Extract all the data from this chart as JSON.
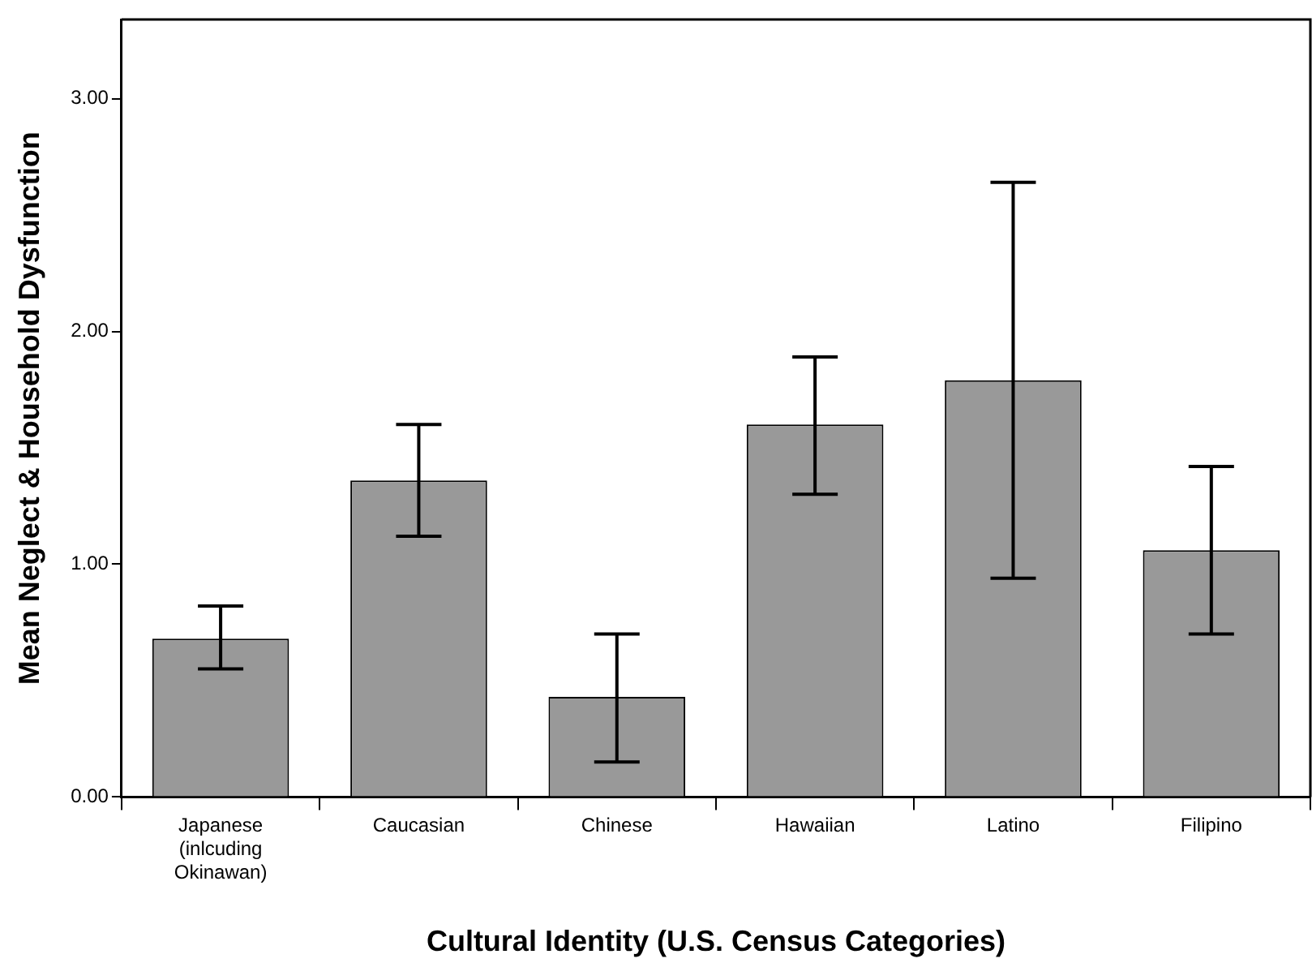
{
  "chart_data": {
    "type": "bar",
    "xlabel": "Cultural Identity (U.S. Census Categories)",
    "ylabel": "Mean Neglect & Household Dysfunction",
    "categories": [
      "Japanese (inlcuding Okinawan)",
      "Caucasian",
      "Chinese",
      "Hawaiian",
      "Latino",
      "Filipino"
    ],
    "values": [
      0.68,
      1.36,
      0.43,
      1.6,
      1.79,
      1.06
    ],
    "errors": [
      [
        0.55,
        0.82
      ],
      [
        1.12,
        1.6
      ],
      [
        0.15,
        0.7
      ],
      [
        1.3,
        1.89
      ],
      [
        0.94,
        2.64
      ],
      [
        0.7,
        1.42
      ]
    ],
    "color": "#999999",
    "ylim": [
      0,
      3.34
    ],
    "yticks": [
      {
        "value": 0,
        "label": "0.00"
      },
      {
        "value": 1,
        "label": "1.00"
      },
      {
        "value": 2,
        "label": "2.00"
      },
      {
        "value": 3,
        "label": "3.00"
      }
    ],
    "grid": false,
    "legend": false
  }
}
